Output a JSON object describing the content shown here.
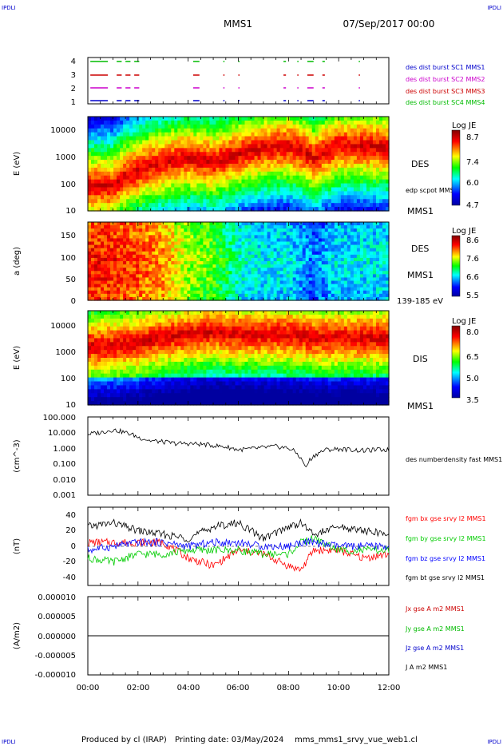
{
  "header": {
    "corner_label": "IPDLI",
    "spacecraft": "MMS1",
    "date": "07/Sep/2017 00:00"
  },
  "footer": {
    "produced_by": "Produced by cl (IRAP)",
    "printing_date": "Printing date: 03/May/2024",
    "product": "mms_mms1_srvy_vue_web1.cl"
  },
  "time_axis": {
    "ticks": [
      "00:00",
      "02:00",
      "04:00",
      "06:00",
      "08:00",
      "10:00",
      "12:00"
    ],
    "range_hours": [
      0,
      12
    ]
  },
  "colors": {
    "c1": "#0000cc",
    "c2": "#cc00cc",
    "c3": "#cc0000",
    "c4": "#00bb00",
    "bx": "#ff0000",
    "by": "#00cc00",
    "bz": "#0000ff",
    "bt": "#000000"
  },
  "chart_data": [
    {
      "type": "line",
      "panel": "burst availability",
      "y_ticks": [
        "4",
        "3",
        "2",
        "1"
      ],
      "series": [
        {
          "name": "des dist burst SC1 MMS1",
          "color": "#0000cc",
          "level": 1,
          "intervals": [
            [
              0.1,
              0.8
            ],
            [
              1.15,
              1.35
            ],
            [
              1.5,
              1.7
            ],
            [
              1.85,
              2.05
            ],
            [
              4.2,
              4.45
            ],
            [
              5.4,
              5.45
            ],
            [
              6.0,
              6.05
            ],
            [
              7.8,
              7.9
            ],
            [
              8.35,
              8.4
            ],
            [
              8.75,
              9.0
            ],
            [
              9.35,
              9.45
            ],
            [
              10.8,
              10.85
            ]
          ]
        },
        {
          "name": "des dist burst SC2 MMS2",
          "color": "#cc00cc",
          "level": 2,
          "intervals": [
            [
              0.1,
              0.8
            ],
            [
              1.15,
              1.35
            ],
            [
              1.5,
              1.7
            ],
            [
              1.85,
              2.05
            ],
            [
              4.2,
              4.45
            ],
            [
              5.4,
              5.45
            ],
            [
              6.0,
              6.05
            ],
            [
              7.8,
              7.9
            ],
            [
              8.35,
              8.4
            ],
            [
              8.75,
              9.0
            ],
            [
              9.35,
              9.45
            ],
            [
              10.8,
              10.85
            ]
          ]
        },
        {
          "name": "des dist burst SC3 MMS3",
          "color": "#cc0000",
          "level": 3,
          "intervals": [
            [
              0.1,
              0.8
            ],
            [
              1.15,
              1.35
            ],
            [
              1.5,
              1.7
            ],
            [
              1.85,
              2.05
            ],
            [
              4.2,
              4.45
            ],
            [
              5.4,
              5.45
            ],
            [
              6.0,
              6.05
            ],
            [
              7.8,
              7.9
            ],
            [
              8.35,
              8.4
            ],
            [
              8.75,
              9.0
            ],
            [
              9.35,
              9.45
            ],
            [
              10.8,
              10.85
            ]
          ]
        },
        {
          "name": "des dist burst SC4 MMS4",
          "color": "#00bb00",
          "level": 4,
          "intervals": [
            [
              0.1,
              0.8
            ],
            [
              1.15,
              1.35
            ],
            [
              1.5,
              1.7
            ],
            [
              1.85,
              2.05
            ],
            [
              4.2,
              4.45
            ],
            [
              5.4,
              5.45
            ],
            [
              6.0,
              6.05
            ],
            [
              7.8,
              7.9
            ],
            [
              8.35,
              8.4
            ],
            [
              8.75,
              9.0
            ],
            [
              9.35,
              9.45
            ],
            [
              10.8,
              10.85
            ]
          ]
        }
      ]
    },
    {
      "type": "heatmap",
      "panel": "DES energy spectrogram",
      "ylabel": "E (eV)",
      "y_ticks": [
        "10000",
        "1000",
        "100",
        "10"
      ],
      "ylim": [
        10,
        30000
      ],
      "yscale": "log",
      "label": "DES",
      "sub_label": "MMS1",
      "overlay_label": "edp scpot MMS1",
      "colorbar": {
        "title": "Log JE",
        "ticks": [
          "8.7",
          "7.4",
          "6.0",
          "4.7"
        ],
        "range": [
          4.7,
          8.7
        ]
      },
      "peak_energy_profile": {
        "x": [
          0,
          1,
          2,
          3,
          4,
          5,
          6,
          7,
          8,
          9,
          10,
          11,
          12
        ],
        "peak_eV": [
          80,
          80,
          300,
          600,
          900,
          600,
          1200,
          2000,
          2500,
          800,
          2500,
          2500,
          2000
        ]
      }
    },
    {
      "type": "heatmap",
      "panel": "DES pitch angle",
      "ylabel": "a (deg)",
      "y_ticks": [
        "150",
        "100",
        "50",
        "0"
      ],
      "ylim": [
        0,
        180
      ],
      "label": "DES",
      "sub_label": "MMS1",
      "range_label": "139-185 eV",
      "colorbar": {
        "title": "Log JE",
        "ticks": [
          "8.6",
          "7.6",
          "6.6",
          "5.5"
        ],
        "range": [
          5.5,
          8.6
        ]
      },
      "intensity_profile": {
        "x": [
          0,
          1,
          2,
          3,
          4,
          5,
          6,
          7,
          8,
          9,
          10,
          11,
          12
        ],
        "level": [
          0.85,
          0.85,
          0.8,
          0.75,
          0.6,
          0.55,
          0.4,
          0.35,
          0.35,
          0.25,
          0.35,
          0.35,
          0.35
        ]
      }
    },
    {
      "type": "heatmap",
      "panel": "DIS energy spectrogram",
      "ylabel": "E (eV)",
      "y_ticks": [
        "10000",
        "1000",
        "100",
        "10"
      ],
      "ylim": [
        10,
        30000
      ],
      "yscale": "log",
      "label": "DIS",
      "sub_label": "MMS1",
      "colorbar": {
        "title": "Log JE",
        "ticks": [
          "8.0",
          "6.5",
          "5.0",
          "3.5"
        ],
        "range": [
          3.5,
          8.0
        ]
      },
      "peak_energy_profile": {
        "x": [
          0,
          1,
          2,
          3,
          4,
          5,
          6,
          7,
          8,
          9,
          10,
          11,
          12
        ],
        "peak_eV": [
          1500,
          1500,
          2000,
          3000,
          4000,
          5000,
          4000,
          4000,
          4000,
          3000,
          3000,
          3000,
          3000
        ]
      }
    },
    {
      "type": "line",
      "panel": "electron density",
      "ylabel": "(cm^-3)",
      "y_ticks": [
        "100.000",
        "10.000",
        "1.000",
        "0.100",
        "0.010",
        "0.001"
      ],
      "ylim": [
        0.001,
        100
      ],
      "yscale": "log",
      "series": [
        {
          "name": "des numberdensity fast MMS1",
          "color": "#000000",
          "x": [
            0,
            0.5,
            1,
            1.5,
            2,
            2.5,
            3,
            3.5,
            4,
            4.5,
            5,
            5.5,
            6,
            6.5,
            7,
            7.5,
            8,
            8.5,
            8.7,
            9,
            9.5,
            10,
            10.5,
            11,
            11.5,
            12
          ],
          "y": [
            8,
            10,
            15,
            10,
            5,
            3,
            2.5,
            2,
            2,
            1.8,
            1.5,
            1.2,
            0.8,
            0.9,
            1.1,
            1.3,
            1.0,
            0.2,
            0.05,
            0.3,
            0.8,
            0.9,
            0.8,
            0.7,
            0.8,
            0.8
          ]
        }
      ]
    },
    {
      "type": "line",
      "panel": "magnetic field",
      "ylabel": "(nT)",
      "y_ticks": [
        "40",
        "20",
        "0",
        "-20",
        "-40"
      ],
      "ylim": [
        -50,
        50
      ],
      "series": [
        {
          "name": "fgm bx gse srvy l2 MMS1",
          "color": "#ff0000",
          "x": [
            0,
            1,
            2,
            3,
            4,
            5,
            6,
            7,
            8,
            8.5,
            9,
            10,
            11,
            12
          ],
          "y": [
            5,
            5,
            5,
            5,
            -15,
            -25,
            -5,
            -10,
            -25,
            -30,
            -5,
            -5,
            -15,
            -10
          ]
        },
        {
          "name": "fgm by gse srvy l2 MMS1",
          "color": "#00cc00",
          "x": [
            0,
            1,
            2,
            3,
            4,
            5,
            6,
            7,
            8,
            8.5,
            9,
            10,
            11,
            12
          ],
          "y": [
            -15,
            -20,
            -10,
            -10,
            -5,
            -5,
            -5,
            -10,
            -10,
            5,
            10,
            -5,
            -5,
            -5
          ]
        },
        {
          "name": "fgm bz gse srvy l2 MMS1",
          "color": "#0000ff",
          "x": [
            0,
            1,
            2,
            3,
            4,
            5,
            6,
            7,
            8,
            8.5,
            9,
            10,
            11,
            12
          ],
          "y": [
            -5,
            0,
            5,
            5,
            0,
            5,
            5,
            0,
            0,
            5,
            5,
            0,
            0,
            0
          ]
        },
        {
          "name": "fgm bt gse srvy l2 MMS1",
          "color": "#000000",
          "x": [
            0,
            1,
            2,
            3,
            4,
            5,
            6,
            7,
            8,
            8.5,
            9,
            10,
            11,
            12
          ],
          "y": [
            25,
            30,
            20,
            15,
            10,
            25,
            30,
            10,
            25,
            30,
            15,
            25,
            20,
            15
          ]
        }
      ]
    },
    {
      "type": "line",
      "panel": "current density",
      "ylabel": "(A/m2)",
      "y_ticks": [
        "0.000010",
        "0.000005",
        "0.000000",
        "-0.000005",
        "-0.000010"
      ],
      "ylim": [
        -1e-05,
        1e-05
      ],
      "series": [
        {
          "name": "Jx gse A m2 MMS1",
          "color": "#cc0000",
          "x": [
            0,
            12
          ],
          "y": [
            0,
            0
          ]
        },
        {
          "name": "Jy gse A m2 MMS1",
          "color": "#00bb00",
          "x": [
            0,
            12
          ],
          "y": [
            0,
            0
          ]
        },
        {
          "name": "Jz gse A m2 MMS1",
          "color": "#0000cc",
          "x": [
            0,
            12
          ],
          "y": [
            0,
            0
          ]
        },
        {
          "name": "J A m2 MMS1",
          "color": "#000000",
          "x": [
            0,
            12
          ],
          "y": [
            0,
            0
          ]
        }
      ]
    }
  ]
}
